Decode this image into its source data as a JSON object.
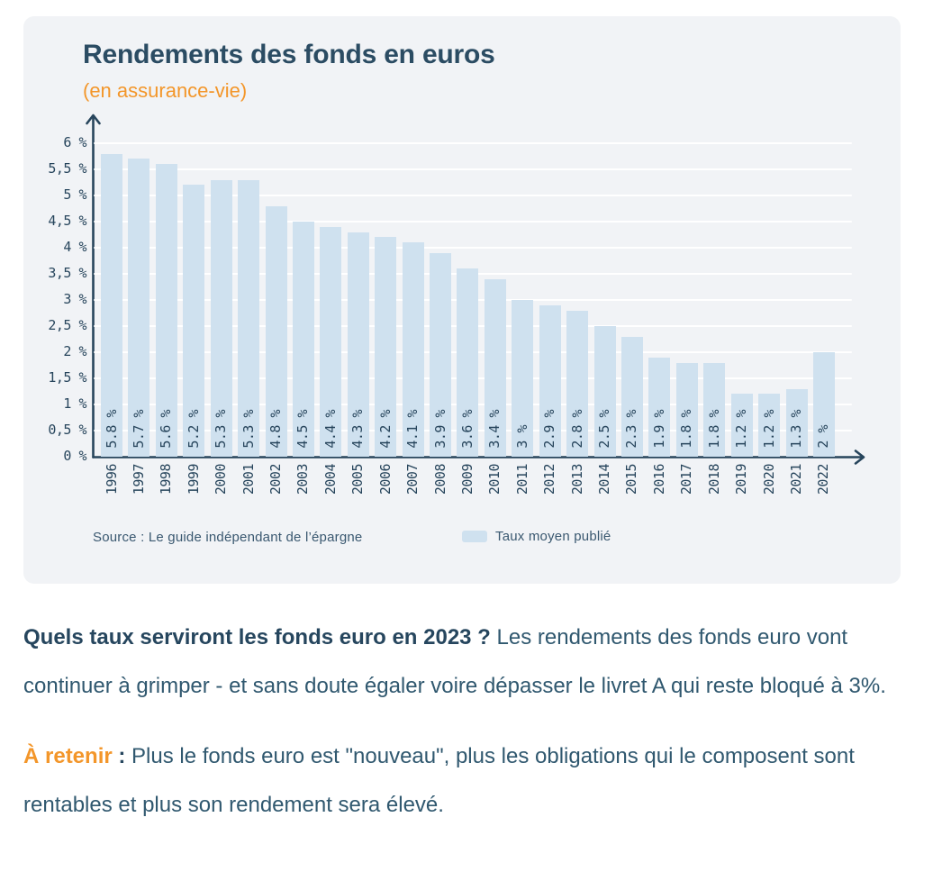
{
  "chart_data": {
    "type": "bar",
    "title": "Rendements des fonds en euros",
    "subtitle": "(en assurance-vie)",
    "xlabel": "",
    "ylabel": "",
    "ylim": [
      0,
      6
    ],
    "grid": "horizontal white gridlines every 0.5",
    "legend_position": "bottom",
    "categories": [
      "1996",
      "1997",
      "1998",
      "1999",
      "2000",
      "2001",
      "2002",
      "2003",
      "2004",
      "2005",
      "2006",
      "2007",
      "2008",
      "2009",
      "2010",
      "2011",
      "2012",
      "2013",
      "2014",
      "2015",
      "2016",
      "2017",
      "2018",
      "2019",
      "2020",
      "2021",
      "2022"
    ],
    "values": [
      5.8,
      5.7,
      5.6,
      5.2,
      5.3,
      5.3,
      4.8,
      4.5,
      4.4,
      4.3,
      4.2,
      4.1,
      3.9,
      3.6,
      3.4,
      3,
      2.9,
      2.8,
      2.5,
      2.3,
      1.9,
      1.8,
      1.8,
      1.2,
      1.2,
      1.3,
      2
    ],
    "bar_labels": [
      "5.8 %",
      "5.7 %",
      "5.6 %",
      "5.2 %",
      "5.3 %",
      "5.3 %",
      "4.8 %",
      "4.5 %",
      "4.4 %",
      "4.3 %",
      "4.2 %",
      "4.1 %",
      "3.9 %",
      "3.6 %",
      "3.4 %",
      "3 %",
      "2.9 %",
      "2.8 %",
      "2.5 %",
      "2.3 %",
      "1.9 %",
      "1.8 %",
      "1.8 %",
      "1.2 %",
      "1.2 %",
      "1.3 %",
      "2 %"
    ],
    "y_ticks": [
      "0 %",
      "0,5 %",
      "1 %",
      "1,5 %",
      "2 %",
      "2,5 %",
      "3 %",
      "3,5 %",
      "4 %",
      "4,5 %",
      "5 %",
      "5,5 %",
      "6 %"
    ],
    "source": "Source : Le guide indépendant de l’épargne",
    "legend": [
      {
        "label": "Taux moyen publié",
        "color": "#cfe1ef"
      }
    ],
    "colors": {
      "bar": "#cfe1ef",
      "panel_background": "#f1f3f6",
      "axis": "#27455c",
      "title": "#2b4c63",
      "accent_orange": "#f3962a"
    }
  },
  "body": {
    "p1_bold": "Quels taux serviront les fonds euro en 2023 ?",
    "p1_text": " Les rendements des fonds euro vont continuer à grimper - et sans doute égaler voire dépasser le livret A qui reste bloqué à 3%.",
    "p2_label": "À retenir",
    "p2_colon": " : ",
    "p2_text": "Plus le fonds euro est \"nouveau\", plus les obligations qui le composent sont rentables et plus son rendement sera élevé."
  }
}
